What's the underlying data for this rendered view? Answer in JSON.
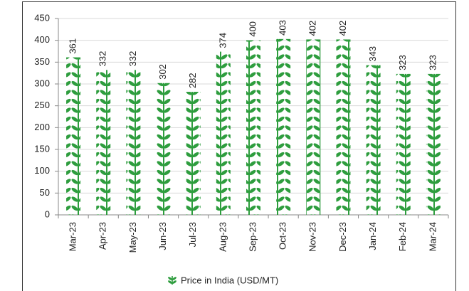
{
  "chart_data": {
    "type": "bar",
    "categories": [
      "Mar-23",
      "Apr-23",
      "May-23",
      "Jun-23",
      "Jul-23",
      "Aug-23",
      "Sep-23",
      "Oct-23",
      "Nov-23",
      "Dec-23",
      "Jan-24",
      "Feb-24",
      "Mar-24"
    ],
    "series": [
      {
        "name": "Price in India (USD/MT)",
        "color": "#2e9d3e",
        "values": [
          361,
          332,
          332,
          302,
          282,
          374,
          400,
          403,
          402,
          402,
          343,
          323,
          323
        ]
      }
    ],
    "ylim": [
      0,
      450
    ],
    "yticks": [
      0,
      50,
      100,
      150,
      200,
      250,
      300,
      350,
      400,
      450
    ],
    "grid": true,
    "legend": "bottom"
  }
}
